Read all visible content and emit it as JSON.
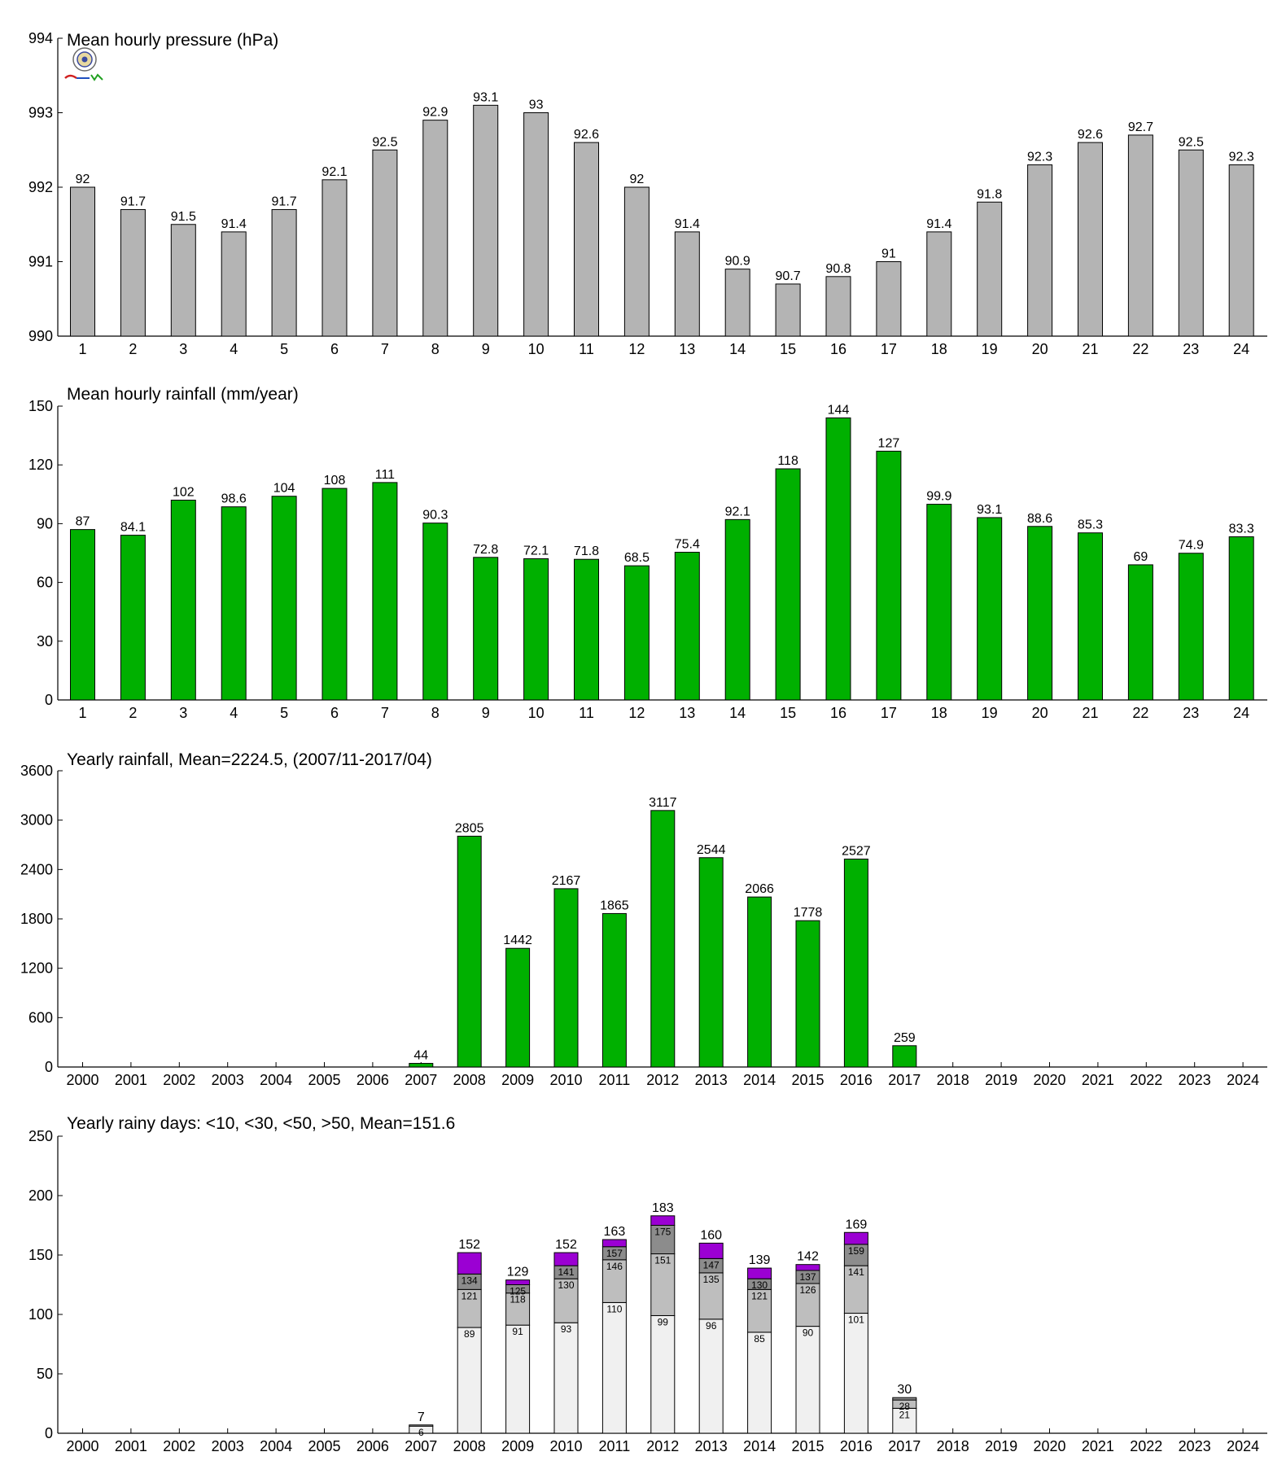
{
  "chart_data": [
    {
      "type": "bar",
      "title": "Mean hourly pressure (hPa)",
      "categories": [
        "1",
        "2",
        "3",
        "4",
        "5",
        "6",
        "7",
        "8",
        "9",
        "10",
        "11",
        "12",
        "13",
        "14",
        "15",
        "16",
        "17",
        "18",
        "19",
        "20",
        "21",
        "22",
        "23",
        "24"
      ],
      "values": [
        992.0,
        991.7,
        991.5,
        991.4,
        991.7,
        992.1,
        992.5,
        992.9,
        993.1,
        993.0,
        992.6,
        992.0,
        991.4,
        990.9,
        990.7,
        990.8,
        991.0,
        991.4,
        991.8,
        992.3,
        992.6,
        992.7,
        992.5,
        992.3
      ],
      "value_labels": [
        "92",
        "91.7",
        "91.5",
        "91.4",
        "91.7",
        "92.1",
        "92.5",
        "92.9",
        "93.1",
        "93",
        "92.6",
        "92",
        "91.4",
        "90.9",
        "90.7",
        "90.8",
        "91",
        "91.4",
        "91.8",
        "92.3",
        "92.6",
        "92.7",
        "92.5",
        "92.3"
      ],
      "ylim": [
        990,
        994
      ],
      "yticks": [
        "990",
        "991",
        "992",
        "993",
        "994"
      ],
      "color": "#b4b4b4"
    },
    {
      "type": "bar",
      "title": "Mean hourly rainfall (mm/year)",
      "categories": [
        "1",
        "2",
        "3",
        "4",
        "5",
        "6",
        "7",
        "8",
        "9",
        "10",
        "11",
        "12",
        "13",
        "14",
        "15",
        "16",
        "17",
        "18",
        "19",
        "20",
        "21",
        "22",
        "23",
        "24"
      ],
      "values": [
        87,
        84.1,
        102,
        98.6,
        104,
        108,
        111,
        90.3,
        72.8,
        72.1,
        71.8,
        68.5,
        75.4,
        92.1,
        118,
        144,
        127,
        99.9,
        93.1,
        88.6,
        85.3,
        69,
        74.9,
        83.3
      ],
      "value_labels": [
        "87",
        "84.1",
        "102",
        "98.6",
        "104",
        "108",
        "111",
        "90.3",
        "72.8",
        "72.1",
        "71.8",
        "68.5",
        "75.4",
        "92.1",
        "118",
        "144",
        "127",
        "99.9",
        "93.1",
        "88.6",
        "85.3",
        "69",
        "74.9",
        "83.3"
      ],
      "ylim": [
        0,
        150
      ],
      "yticks": [
        "0",
        "30",
        "60",
        "90",
        "120",
        "150"
      ],
      "color": "#00b000"
    },
    {
      "type": "bar",
      "title": "Yearly rainfall, Mean=2224.5, (2007/11-2017/04)",
      "categories": [
        "2000",
        "2001",
        "2002",
        "2003",
        "2004",
        "2005",
        "2006",
        "2007",
        "2008",
        "2009",
        "2010",
        "2011",
        "2012",
        "2013",
        "2014",
        "2015",
        "2016",
        "2017",
        "2018",
        "2019",
        "2020",
        "2021",
        "2022",
        "2023",
        "2024"
      ],
      "values": [
        null,
        null,
        null,
        null,
        null,
        null,
        null,
        44,
        2805,
        1442,
        2167,
        1865,
        3117,
        2544,
        2066,
        1778,
        2527,
        259,
        null,
        null,
        null,
        null,
        null,
        null,
        null
      ],
      "value_labels": [
        "",
        "",
        "",
        "",
        "",
        "",
        "",
        "44",
        "2805",
        "1442",
        "2167",
        "1865",
        "3117",
        "2544",
        "2066",
        "1778",
        "2527",
        "259",
        "",
        "",
        "",
        "",
        "",
        "",
        ""
      ],
      "ylim": [
        0,
        3600
      ],
      "yticks": [
        "0",
        "600",
        "1200",
        "1800",
        "2400",
        "3000",
        "3600"
      ],
      "color": "#00b000"
    },
    {
      "type": "bar",
      "stacked": true,
      "title": "Yearly rainy days: <10, <30, <50, >50, Mean=151.6",
      "categories": [
        "2000",
        "2001",
        "2002",
        "2003",
        "2004",
        "2005",
        "2006",
        "2007",
        "2008",
        "2009",
        "2010",
        "2011",
        "2012",
        "2013",
        "2014",
        "2015",
        "2016",
        "2017",
        "2018",
        "2019",
        "2020",
        "2021",
        "2022",
        "2023",
        "2024"
      ],
      "cumulative": [
        [
          null,
          null,
          null,
          null,
          null,
          null,
          null,
          6,
          89,
          91,
          93,
          110,
          99,
          96,
          85,
          90,
          101,
          21,
          null,
          null,
          null,
          null,
          null,
          null,
          null
        ],
        [
          null,
          null,
          null,
          null,
          null,
          null,
          null,
          7,
          121,
          118,
          130,
          146,
          151,
          135,
          121,
          126,
          141,
          28,
          null,
          null,
          null,
          null,
          null,
          null,
          null
        ],
        [
          null,
          null,
          null,
          null,
          null,
          null,
          null,
          7,
          134,
          125,
          141,
          157,
          175,
          147,
          130,
          137,
          159,
          30,
          null,
          null,
          null,
          null,
          null,
          null,
          null
        ],
        [
          null,
          null,
          null,
          null,
          null,
          null,
          null,
          7,
          152,
          129,
          152,
          163,
          183,
          160,
          139,
          142,
          169,
          30,
          null,
          null,
          null,
          null,
          null,
          null,
          null
        ]
      ],
      "segment_labels": [
        [
          "",
          "",
          "",
          "",
          "",
          "",
          "",
          "6",
          "89",
          "91",
          "93",
          "110",
          "99",
          "96",
          "85",
          "90",
          "101",
          "21",
          "",
          "",
          "",
          "",
          "",
          "",
          ""
        ],
        [
          "",
          "",
          "",
          "",
          "",
          "",
          "",
          "",
          "121",
          "118",
          "130",
          "146",
          "151",
          "135",
          "121",
          "126",
          "141",
          "28",
          "",
          "",
          "",
          "",
          "",
          "",
          ""
        ],
        [
          "",
          "",
          "",
          "",
          "",
          "",
          "",
          "",
          "134",
          "125",
          "141",
          "157",
          "175",
          "147",
          "130",
          "137",
          "159",
          "",
          "",
          "",
          "",
          "",
          "",
          "",
          ""
        ]
      ],
      "total_labels": [
        "",
        "",
        "",
        "",
        "",
        "",
        "",
        "7",
        "152",
        "129",
        "152",
        "163",
        "183",
        "160",
        "139",
        "142",
        "169",
        "30",
        "",
        "",
        "",
        "",
        "",
        "",
        ""
      ],
      "ylim": [
        0,
        250
      ],
      "yticks": [
        "0",
        "50",
        "100",
        "150",
        "200",
        "250"
      ],
      "colors": [
        "#f0f0f0",
        "#bebebe",
        "#8c8c8c",
        "#9b00d3"
      ]
    }
  ]
}
